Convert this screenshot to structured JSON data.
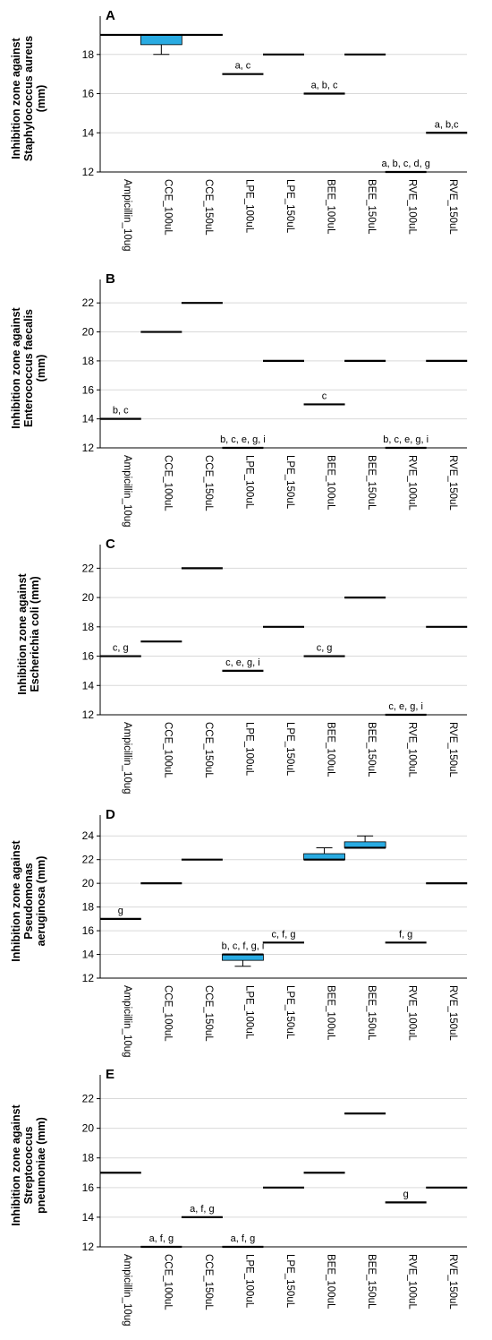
{
  "figure": {
    "colors": {
      "box_fill": "#29abe2",
      "grid": "#d9d9d9",
      "axis": "#000000",
      "median": "#000000"
    }
  },
  "chart_data": [
    {
      "type": "box",
      "panel": "A",
      "ylabel_lines": [
        "Inhibition zone against",
        "Staphylococcus aureus",
        "(mm)"
      ],
      "ylim": [
        12,
        19.5
      ],
      "yticks": [
        12,
        14,
        16,
        18
      ],
      "grid": true,
      "categories": [
        "Ampicillin_10ug",
        "CCE_100uL",
        "CCE_150uL",
        "LPE_100uL",
        "LPE_150uL",
        "BEE_100uL",
        "BEE_150uL",
        "RVE_100uL",
        "RVE_150uL"
      ],
      "boxes": [
        {
          "median": 19
        },
        {
          "median": 19,
          "q1": 18.5,
          "q3": 19,
          "min": 18,
          "max": 19
        },
        {
          "median": 19
        },
        {
          "median": 17,
          "annotation": "a, c"
        },
        {
          "median": 18
        },
        {
          "median": 16,
          "annotation": "a, b, c"
        },
        {
          "median": 18
        },
        {
          "median": 12,
          "annotation": "a, b, c, d, g"
        },
        {
          "median": 14,
          "annotation": "a, b,c"
        }
      ]
    },
    {
      "type": "box",
      "panel": "B",
      "ylabel_lines": [
        "Inhibition zone against",
        "Enterococcus faecalis",
        "(mm)"
      ],
      "ylim": [
        12,
        23
      ],
      "yticks": [
        12,
        14,
        16,
        18,
        20,
        22
      ],
      "grid": true,
      "categories": [
        "Ampicillin_10ug",
        "CCE_100uL",
        "CCE_150uL",
        "LPE_100uL",
        "LPE_150uL",
        "BEE_100uL",
        "BEE_150uL",
        "RVE_100uL",
        "RVE_150uL"
      ],
      "boxes": [
        {
          "median": 14,
          "annotation": "b, c"
        },
        {
          "median": 20
        },
        {
          "median": 22
        },
        {
          "median": 12,
          "annotation": "b, c, e, g, i"
        },
        {
          "median": 18
        },
        {
          "median": 15,
          "annotation": "c"
        },
        {
          "median": 18
        },
        {
          "median": 12,
          "annotation": "b, c, e, g, i"
        },
        {
          "median": 18
        }
      ]
    },
    {
      "type": "box",
      "panel": "C",
      "ylabel_lines": [
        "Inhibition zone against",
        "Escherichia coli (mm)"
      ],
      "ylim": [
        12,
        23
      ],
      "yticks": [
        12,
        14,
        16,
        18,
        20,
        22
      ],
      "grid": true,
      "categories": [
        "Ampicillin_10ug",
        "CCE_100uL",
        "CCE_150uL",
        "LPE_100uL",
        "LPE_150uL",
        "BEE_100uL",
        "BEE_150uL",
        "RVE_100uL",
        "RVE_150uL"
      ],
      "boxes": [
        {
          "median": 16,
          "annotation": "c, g"
        },
        {
          "median": 17
        },
        {
          "median": 22
        },
        {
          "median": 15,
          "annotation": "c, e, g, i"
        },
        {
          "median": 18
        },
        {
          "median": 16,
          "annotation": "c, g"
        },
        {
          "median": 20
        },
        {
          "median": 12,
          "annotation": "c, e, g, i"
        },
        {
          "median": 18
        }
      ]
    },
    {
      "type": "box",
      "panel": "D",
      "ylabel_lines": [
        "Inhibition zone against",
        "Pseudomonas",
        "aeruginosa (mm)"
      ],
      "ylim": [
        12,
        25
      ],
      "yticks": [
        12,
        14,
        16,
        18,
        20,
        22,
        24
      ],
      "grid": true,
      "categories": [
        "Ampicillin_10ug",
        "CCE_100uL",
        "CCE_150uL",
        "LPE_100uL",
        "LPE_150uL",
        "BEE_100uL",
        "BEE_150uL",
        "RVE_100uL",
        "RVE_150uL"
      ],
      "boxes": [
        {
          "median": 17,
          "annotation": "g"
        },
        {
          "median": 20
        },
        {
          "median": 22
        },
        {
          "median": 14,
          "q1": 13.5,
          "q3": 14,
          "min": 13,
          "max": 14,
          "annotation": "b, c, f, g, i"
        },
        {
          "median": 15,
          "annotation": "c, f, g"
        },
        {
          "median": 22,
          "q1": 22,
          "q3": 22.5,
          "min": 22,
          "max": 23
        },
        {
          "median": 23,
          "q1": 23,
          "q3": 23.5,
          "min": 23,
          "max": 24
        },
        {
          "median": 15,
          "annotation": "f, g"
        },
        {
          "median": 20
        }
      ]
    },
    {
      "type": "box",
      "panel": "E",
      "ylabel_lines": [
        "Inhibition zone against",
        "Streptococcus",
        "pneumoniae (mm)"
      ],
      "ylim": [
        12,
        23
      ],
      "yticks": [
        12,
        14,
        16,
        18,
        20,
        22
      ],
      "grid": true,
      "categories": [
        "Ampicillin_10ug",
        "CCE_100uL",
        "CCE_150uL",
        "LPE_100uL",
        "LPE_150uL",
        "BEE_100uL",
        "BEE_150uL",
        "RVE_100uL",
        "RVE_150uL"
      ],
      "boxes": [
        {
          "median": 17
        },
        {
          "median": 12,
          "annotation": "a, f, g"
        },
        {
          "median": 14,
          "annotation": "a, f, g"
        },
        {
          "median": 12,
          "annotation": "a, f, g"
        },
        {
          "median": 16
        },
        {
          "median": 17
        },
        {
          "median": 21
        },
        {
          "median": 15,
          "annotation": "g"
        },
        {
          "median": 16
        }
      ]
    }
  ]
}
